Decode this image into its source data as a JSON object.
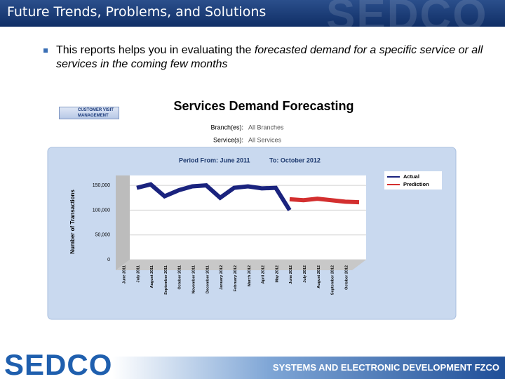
{
  "title": "Future Trends, Problems, and Solutions",
  "watermark": "SEDCO",
  "bullet": {
    "text": "This reports helps you in evaluating the ",
    "emphasis": "forecasted demand for a specific service or all services in the coming few months"
  },
  "logo": "CUSTOMER VISIT MANAGEMENT",
  "footer": {
    "brand": "SEDCO",
    "company": "SYSTEMS AND ELECTRONIC DEVELOPMENT FZCO"
  },
  "chart_data": {
    "type": "line",
    "title": "Services Demand Forecasting",
    "filters": [
      {
        "label": "Branch(es):",
        "value": "All Branches"
      },
      {
        "label": "Service(s):",
        "value": "All Services"
      }
    ],
    "period": {
      "from": "Period From: June 2011",
      "to": "To: October 2012"
    },
    "ylabel": "Number of Transactions",
    "categories": [
      "June 2011",
      "July 2011",
      "August 2011",
      "September 2011",
      "October 2011",
      "November 2011",
      "December 2011",
      "January 2012",
      "February 2012",
      "March 2012",
      "April 2012",
      "May 2012",
      "June 2012",
      "July 2012",
      "August 2012",
      "September 2012",
      "October 2012"
    ],
    "series": [
      {
        "name": "Actual",
        "color": "#1a237e",
        "values": [
          145000,
          152000,
          128000,
          140000,
          148000,
          150000,
          125000,
          145000,
          148000,
          144000,
          145000,
          100000,
          null,
          null,
          null,
          null,
          null
        ]
      },
      {
        "name": "Prediction",
        "color": "#d32f2f",
        "values": [
          null,
          null,
          null,
          null,
          null,
          null,
          null,
          null,
          null,
          null,
          null,
          122000,
          120000,
          123000,
          120000,
          117000,
          116000
        ]
      }
    ],
    "ylim": [
      0,
      170000
    ],
    "yticks": [
      0,
      {
        "value": 50000,
        "label": "50,000"
      },
      {
        "value": 100000,
        "label": "100,000"
      },
      {
        "value": 150000,
        "label": "150,000"
      }
    ],
    "grid": true,
    "legend": "top-right"
  }
}
